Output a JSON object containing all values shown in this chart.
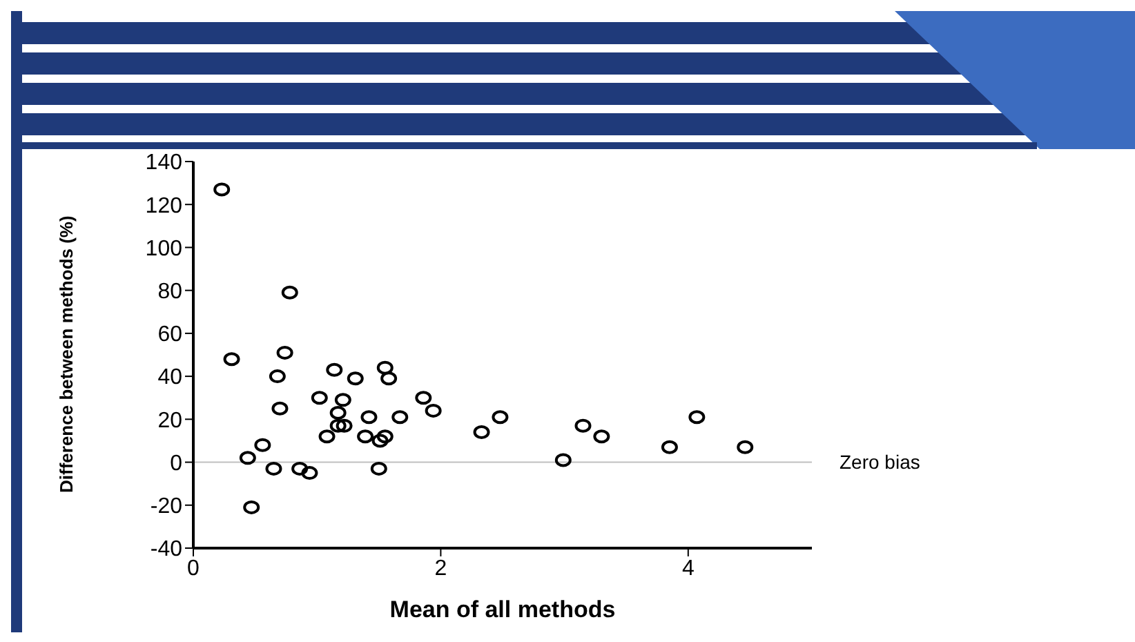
{
  "chart_data": {
    "type": "scatter",
    "xlabel": "Mean of all methods",
    "ylabel": "Difference between methods (%)",
    "x": [
      0.23,
      0.31,
      0.78,
      0.74,
      0.68,
      0.7,
      0.56,
      0.44,
      0.65,
      0.47,
      0.86,
      0.94,
      1.02,
      1.14,
      1.17,
      1.21,
      1.17,
      1.22,
      1.08,
      1.31,
      1.42,
      1.39,
      1.55,
      1.58,
      1.51,
      1.55,
      1.5,
      1.67,
      1.86,
      1.94,
      2.33,
      2.48,
      2.99,
      3.15,
      3.3,
      3.85,
      4.07,
      4.46
    ],
    "series": [
      {
        "color": "#000000",
        "values": [
          127,
          48,
          79,
          51,
          40,
          25,
          8,
          2,
          -3,
          -21,
          -3,
          -5,
          30,
          43,
          23,
          29,
          17,
          17,
          12,
          39,
          21,
          12,
          44,
          39,
          10,
          12,
          -3,
          21,
          30,
          24,
          14,
          21,
          1,
          17,
          12,
          7,
          21,
          7
        ]
      }
    ],
    "xlim": [
      0,
      5
    ],
    "xticks": [
      0,
      2,
      4
    ],
    "ylim": [
      -40,
      140
    ],
    "yticks": [
      -40,
      -20,
      0,
      20,
      40,
      60,
      80,
      100,
      120,
      140
    ],
    "ref_lines": [
      {
        "axis": "y",
        "value": 0,
        "label": "Zero bias",
        "color": "#c0c0c0"
      }
    ],
    "grid": false,
    "legend": false,
    "marker": "circle"
  }
}
